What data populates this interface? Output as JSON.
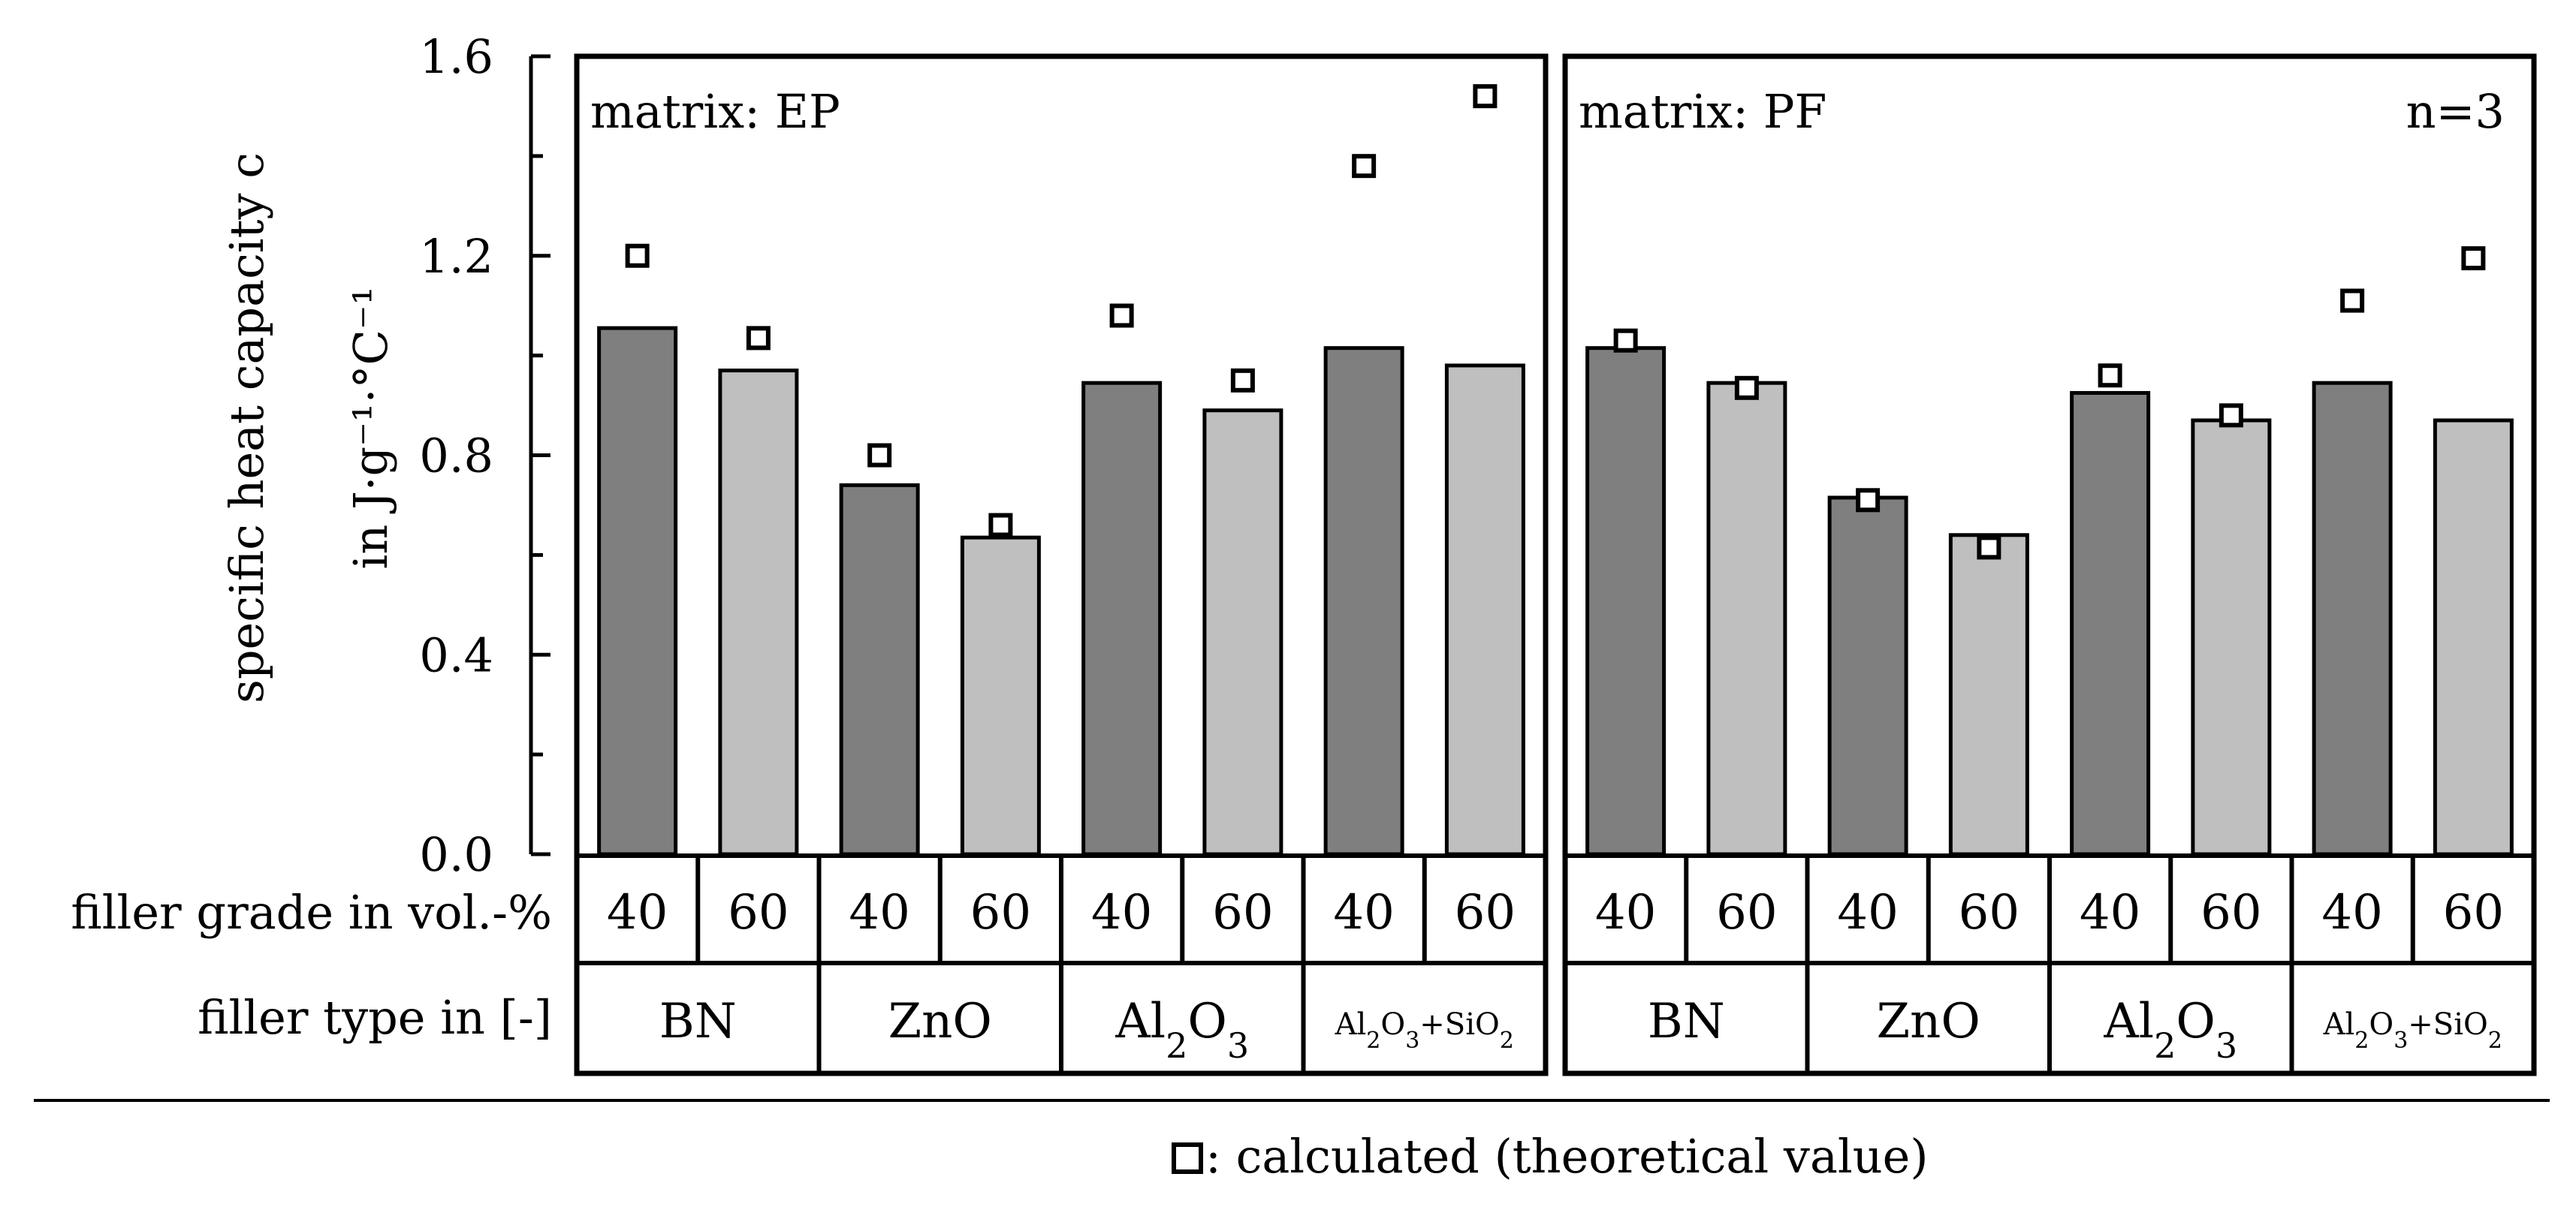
{
  "chart_data": {
    "type": "bar",
    "ylabel_line1": "specific heat capacity c",
    "ylabel_line2": "in J·g⁻¹·°C⁻¹",
    "ylim": [
      0,
      1.6
    ],
    "yticks": [
      "0.0",
      "0.4",
      "0.8",
      "1.2",
      "1.6"
    ],
    "row_labels": {
      "grade": "filler grade in vol.-%",
      "type": "filler type in [-]"
    },
    "filler_types": [
      "BN",
      "ZnO",
      "Al2O3",
      "Al2O3+SiO2"
    ],
    "filler_grades": [
      "40",
      "60"
    ],
    "annotation": "n=3",
    "legend": {
      "text": ": calculated (theoretical value)",
      "position": "bottom-center"
    },
    "bar_colors": {
      "grade_40": "#7f7f7f",
      "grade_60": "#bfbfbf"
    },
    "panels": [
      {
        "label": "matrix: EP",
        "measured": [
          1.055,
          0.97,
          0.74,
          0.635,
          0.945,
          0.89,
          1.015,
          0.98
        ],
        "calculated": [
          1.2,
          1.035,
          0.8,
          0.66,
          1.08,
          0.95,
          1.38,
          1.52
        ]
      },
      {
        "label": "matrix: PF",
        "measured": [
          1.015,
          0.945,
          0.715,
          0.64,
          0.925,
          0.87,
          0.945,
          0.87
        ],
        "calculated": [
          1.03,
          0.935,
          0.71,
          0.615,
          0.96,
          0.88,
          1.11,
          1.195
        ]
      }
    ]
  }
}
